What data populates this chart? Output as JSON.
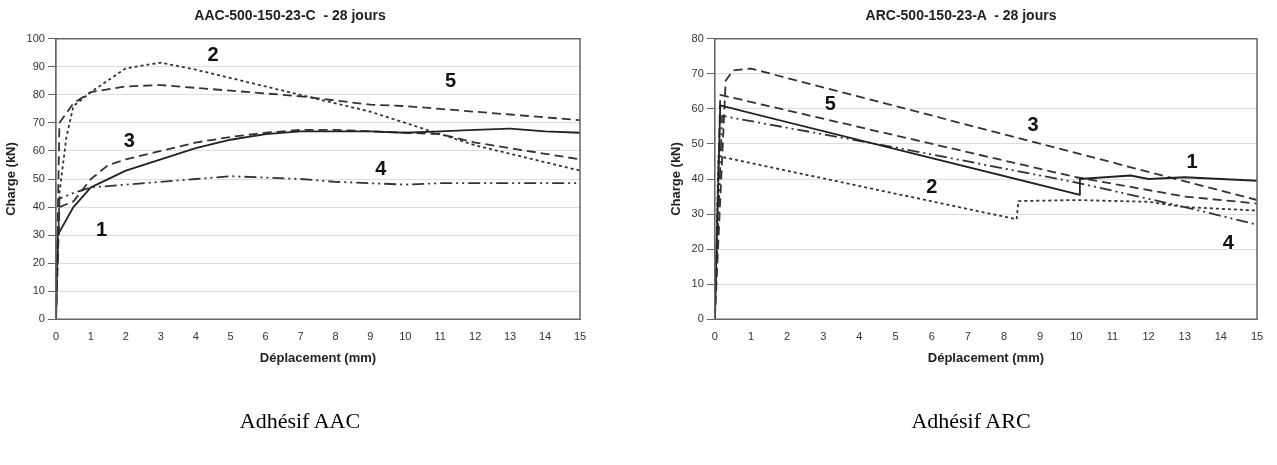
{
  "chart_data": [
    {
      "type": "line",
      "title": "AAC-500-150-23-C  - 28 jours",
      "xlabel": "Déplacement (mm)",
      "ylabel": "Charge (kN)",
      "xlim": [
        0,
        15
      ],
      "xticks": [
        0,
        1,
        2,
        3,
        4,
        5,
        6,
        7,
        8,
        9,
        10,
        11,
        12,
        13,
        14,
        15
      ],
      "ylim": [
        0,
        100
      ],
      "yticks": [
        0,
        10,
        20,
        30,
        40,
        50,
        60,
        70,
        80,
        90,
        100
      ],
      "grid": "y",
      "legend": false,
      "marker": "none",
      "series": [
        {
          "name": "1",
          "color": "#222222",
          "line_style": "solid",
          "x": [
            0,
            0.05,
            0.5,
            1,
            2,
            3,
            4,
            5,
            6,
            7,
            8,
            9,
            10,
            11,
            12,
            13,
            14,
            15
          ],
          "values": [
            0,
            30,
            40,
            47,
            53,
            57,
            61,
            64,
            66,
            67,
            67,
            67,
            66.5,
            67,
            67.5,
            68,
            67,
            66.5
          ]
        },
        {
          "name": "2",
          "color": "#333333",
          "line_style": "dotted",
          "x": [
            0,
            0.1,
            0.3,
            0.5,
            1,
            2,
            3,
            4,
            5,
            6,
            7,
            8,
            9,
            10,
            11,
            12,
            13,
            14,
            15
          ],
          "values": [
            0,
            45,
            65,
            76,
            81,
            89.5,
            91.5,
            89,
            86,
            83,
            80,
            77,
            74,
            70,
            66,
            62,
            59,
            56,
            53
          ]
        },
        {
          "name": "3",
          "color": "#333333",
          "line_style": "dashed",
          "x": [
            0,
            0.1,
            0.5,
            1,
            1.5,
            2,
            3,
            4,
            5,
            6,
            7,
            8,
            9,
            10,
            11,
            12,
            13,
            14,
            15
          ],
          "values": [
            0,
            40,
            42,
            50,
            55,
            57,
            60,
            63,
            65,
            66.5,
            67.5,
            67.5,
            67,
            66.5,
            66,
            63,
            61,
            59,
            57
          ]
        },
        {
          "name": "4",
          "color": "#333333",
          "line_style": "dashdot",
          "x": [
            0,
            0.1,
            0.5,
            1,
            2,
            3,
            4,
            5,
            6,
            7,
            8,
            9,
            10,
            11,
            12,
            13,
            14,
            15
          ],
          "values": [
            0,
            43,
            45,
            47,
            48,
            49,
            50,
            51,
            50.5,
            50,
            49,
            48.5,
            48,
            48.5,
            48.5,
            48.5,
            48.5,
            48.5
          ]
        },
        {
          "name": "5",
          "color": "#333333",
          "line_style": "dashed",
          "x": [
            0,
            0.1,
            0.5,
            1,
            2,
            3,
            4,
            5,
            6,
            7,
            8,
            9,
            10,
            11,
            12,
            13,
            14,
            15
          ],
          "values": [
            0,
            70,
            77,
            81,
            83,
            83.5,
            82.5,
            81.5,
            80.5,
            79.5,
            78,
            76.5,
            76,
            75,
            74,
            73,
            72,
            71
          ]
        }
      ],
      "annotations": [
        "Adhésif AAC"
      ]
    },
    {
      "type": "line",
      "title": "ARC-500-150-23-A  - 28 jours",
      "xlabel": "Déplacement (mm)",
      "ylabel": "Charge (kN)",
      "xlim": [
        0,
        15
      ],
      "xticks": [
        0,
        1,
        2,
        3,
        4,
        5,
        6,
        7,
        8,
        9,
        10,
        11,
        12,
        13,
        14,
        15
      ],
      "ylim": [
        0,
        80
      ],
      "yticks": [
        0,
        10,
        20,
        30,
        40,
        50,
        60,
        70,
        80
      ],
      "grid": "y",
      "legend": false,
      "marker": "none",
      "series": [
        {
          "name": "1",
          "color": "#222222",
          "line_style": "solid",
          "x": [
            0,
            0.15,
            5,
            10.1,
            10.1,
            11.5,
            12,
            13,
            15
          ],
          "values": [
            0,
            61,
            48.5,
            35.5,
            40,
            41,
            40,
            40.5,
            39.5
          ]
        },
        {
          "name": "2",
          "color": "#333333",
          "line_style": "dotted",
          "x": [
            0,
            0.1,
            8.35,
            8.4,
            10,
            12,
            13,
            15
          ],
          "values": [
            0,
            46.5,
            28.5,
            33.7,
            34,
            33.5,
            32,
            31
          ]
        },
        {
          "name": "3",
          "color": "#333333",
          "line_style": "dashed",
          "x": [
            0,
            0.3,
            0.5,
            1,
            15
          ],
          "values": [
            0,
            68,
            71,
            71.5,
            34
          ]
        },
        {
          "name": "4",
          "color": "#333333",
          "line_style": "dashdot",
          "x": [
            0,
            0.2,
            5,
            10,
            13,
            15
          ],
          "values": [
            0,
            58,
            49,
            39,
            32,
            27
          ]
        },
        {
          "name": "5",
          "color": "#333333",
          "line_style": "dashed",
          "x": [
            0,
            0.15,
            10,
            13,
            15
          ],
          "values": [
            0,
            64,
            40.5,
            35,
            33
          ]
        }
      ],
      "annotations": [
        "Adhésif ARC"
      ]
    }
  ]
}
